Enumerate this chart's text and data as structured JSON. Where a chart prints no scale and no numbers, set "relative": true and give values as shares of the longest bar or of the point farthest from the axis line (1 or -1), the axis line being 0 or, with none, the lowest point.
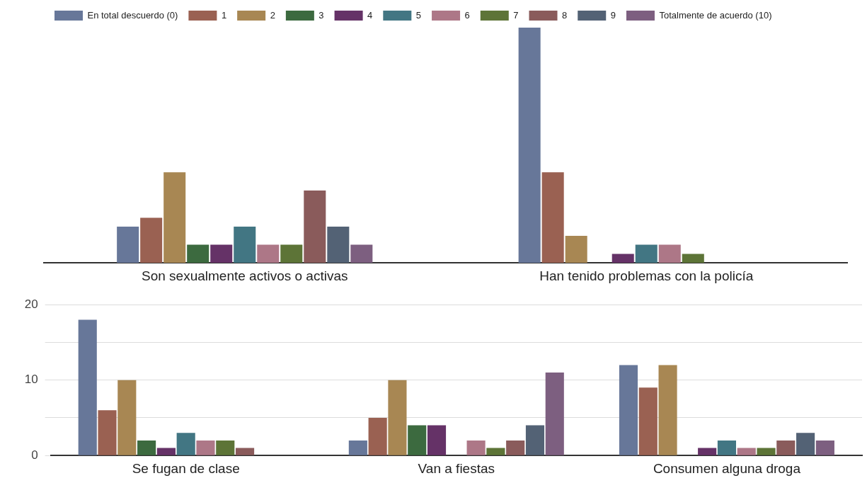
{
  "chart_data": [
    {
      "type": "bar",
      "relative": true,
      "legend": "top",
      "categories": [
        "Son sexualmente activos o activas",
        "Han tenido problemas con la policía"
      ],
      "series": [
        {
          "name": "En total descuerdo (0)",
          "color": "#677799",
          "values": [
            0.154,
            1
          ]
        },
        {
          "name": "1",
          "color": "#9a6152",
          "values": [
            0.192,
            0.385
          ]
        },
        {
          "name": "2",
          "color": "#a88753",
          "values": [
            0.385,
            0.115
          ]
        },
        {
          "name": "3",
          "color": "#3c6a3f",
          "values": [
            0.077,
            0
          ]
        },
        {
          "name": "4",
          "color": "#653267",
          "values": [
            0.077,
            0.038
          ]
        },
        {
          "name": "5",
          "color": "#427683",
          "values": [
            0.154,
            0.077
          ]
        },
        {
          "name": "6",
          "color": "#ad7787",
          "values": [
            0.077,
            0.077
          ]
        },
        {
          "name": "7",
          "color": "#5d7437",
          "values": [
            0.077,
            0.038
          ]
        },
        {
          "name": "8",
          "color": "#8a5b5b",
          "values": [
            0.308,
            0
          ]
        },
        {
          "name": "9",
          "color": "#536275",
          "values": [
            0.154,
            0
          ]
        },
        {
          "name": "Totalmente de acuerdo (10)",
          "color": "#7d5f80",
          "values": [
            0.077,
            0
          ]
        }
      ]
    },
    {
      "type": "bar",
      "grid": "y",
      "ylim": [
        0,
        20
      ],
      "yticks": [
        0,
        {
          "value": 5,
          "label": null
        },
        10,
        {
          "value": 15,
          "label": null
        },
        20
      ],
      "categories": [
        "Se fugan de clase",
        "Van a fiestas",
        "Consumen alguna droga"
      ],
      "series": [
        {
          "color": "#677799",
          "values": [
            18,
            2,
            12
          ]
        },
        {
          "color": "#9a6152",
          "values": [
            6,
            5,
            9
          ]
        },
        {
          "color": "#a88753",
          "values": [
            10,
            10,
            12
          ]
        },
        {
          "color": "#3c6a3f",
          "values": [
            2,
            4,
            0
          ]
        },
        {
          "color": "#653267",
          "values": [
            1,
            4,
            1
          ]
        },
        {
          "color": "#427683",
          "values": [
            3,
            0,
            2
          ]
        },
        {
          "color": "#ad7787",
          "values": [
            2,
            2,
            1
          ]
        },
        {
          "color": "#5d7437",
          "values": [
            2,
            1,
            1
          ]
        },
        {
          "color": "#8a5b5b",
          "values": [
            1,
            2,
            2
          ]
        },
        {
          "color": "#536275",
          "values": [
            0,
            4,
            3
          ]
        },
        {
          "color": "#7d5f80",
          "values": [
            0,
            11,
            2
          ]
        }
      ]
    }
  ]
}
